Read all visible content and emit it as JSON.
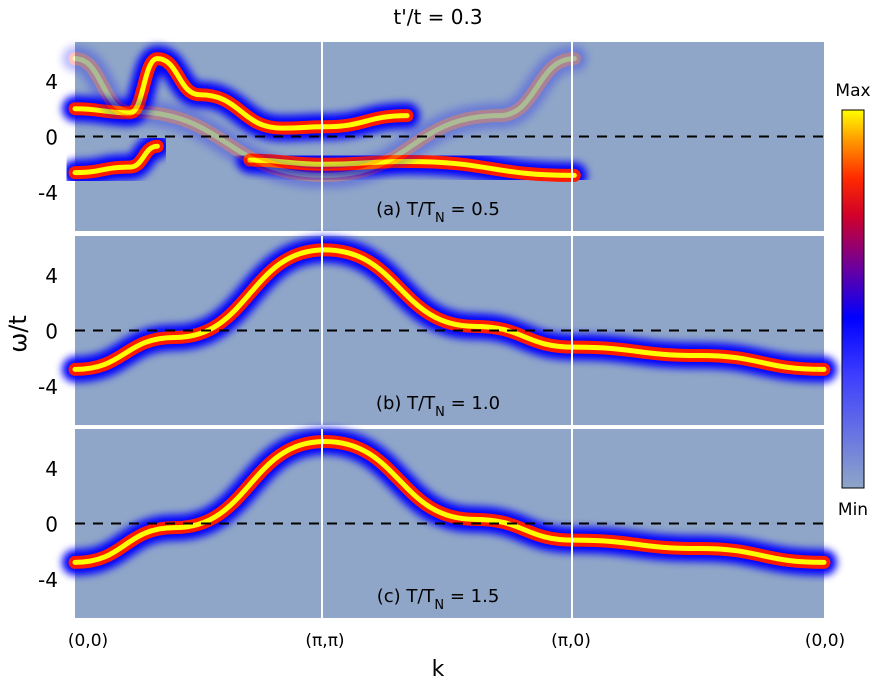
{
  "chart_data": {
    "type": "heatmap",
    "title": "t'/t = 0.3",
    "xlabel": "k",
    "ylabel": "ω/t",
    "x_ticks": [
      "(0,0)",
      "(π,π)",
      "(π,0)",
      "(0,0)"
    ],
    "y_ticks": [
      4,
      0,
      -4
    ],
    "ylim": [
      -6.8,
      6.8
    ],
    "colorbar": {
      "max_label": "Max",
      "min_label": "Min",
      "colors": [
        "#8fa6c8",
        "#3d3dff",
        "#0000ff",
        "#6a00a0",
        "#d0002a",
        "#ff2a00",
        "#ff9a00",
        "#ffff00"
      ]
    },
    "fermi_level": 0,
    "panels": [
      {
        "label_prefix": "(a) T/T",
        "label_sub": "N",
        "label_suffix": " = 0.5",
        "T_over_TN": 0.5,
        "bands": [
          {
            "name": "upper",
            "k": [
              0,
              0.22,
              0.33,
              0.5,
              0.83,
              1.0,
              1.33
            ],
            "omega": [
              2.0,
              1.7,
              5.6,
              3.0,
              0.6,
              0.7,
              1.5
            ],
            "intensity": 1.0
          },
          {
            "name": "lower",
            "k": [
              0,
              0.22,
              0.33
            ],
            "omega": [
              -2.6,
              -2.2,
              -0.7
            ],
            "intensity": 1.0
          },
          {
            "name": "lower-right",
            "k": [
              0.7,
              1.0,
              1.33,
              2.0
            ],
            "omega": [
              -1.7,
              -2.0,
              -1.8,
              -2.8
            ],
            "intensity": 1.0
          },
          {
            "name": "shadow",
            "k": [
              0,
              0.22,
              1.0,
              1.7,
              2.0
            ],
            "omega": [
              5.6,
              1.8,
              -2.8,
              1.5,
              5.6
            ],
            "intensity": 0.25
          }
        ]
      },
      {
        "label_prefix": "(b) T/T",
        "label_sub": "N",
        "label_suffix": " = 1.0",
        "T_over_TN": 1.0,
        "bands": [
          {
            "name": "main",
            "k": [
              0,
              0.4,
              1.0,
              1.6,
              2.0,
              2.5,
              3.0
            ],
            "omega": [
              -2.8,
              -0.5,
              5.8,
              0.3,
              -1.2,
              -1.8,
              -2.8
            ],
            "intensity": 1.0
          }
        ]
      },
      {
        "label_prefix": "(c) T/T",
        "label_sub": "N",
        "label_suffix": " = 1.5",
        "T_over_TN": 1.5,
        "bands": [
          {
            "name": "main",
            "k": [
              0,
              0.4,
              1.0,
              1.6,
              2.0,
              2.5,
              3.0
            ],
            "omega": [
              -2.8,
              -0.3,
              5.9,
              0.3,
              -1.2,
              -1.8,
              -2.8
            ],
            "intensity": 1.0
          }
        ]
      }
    ]
  }
}
